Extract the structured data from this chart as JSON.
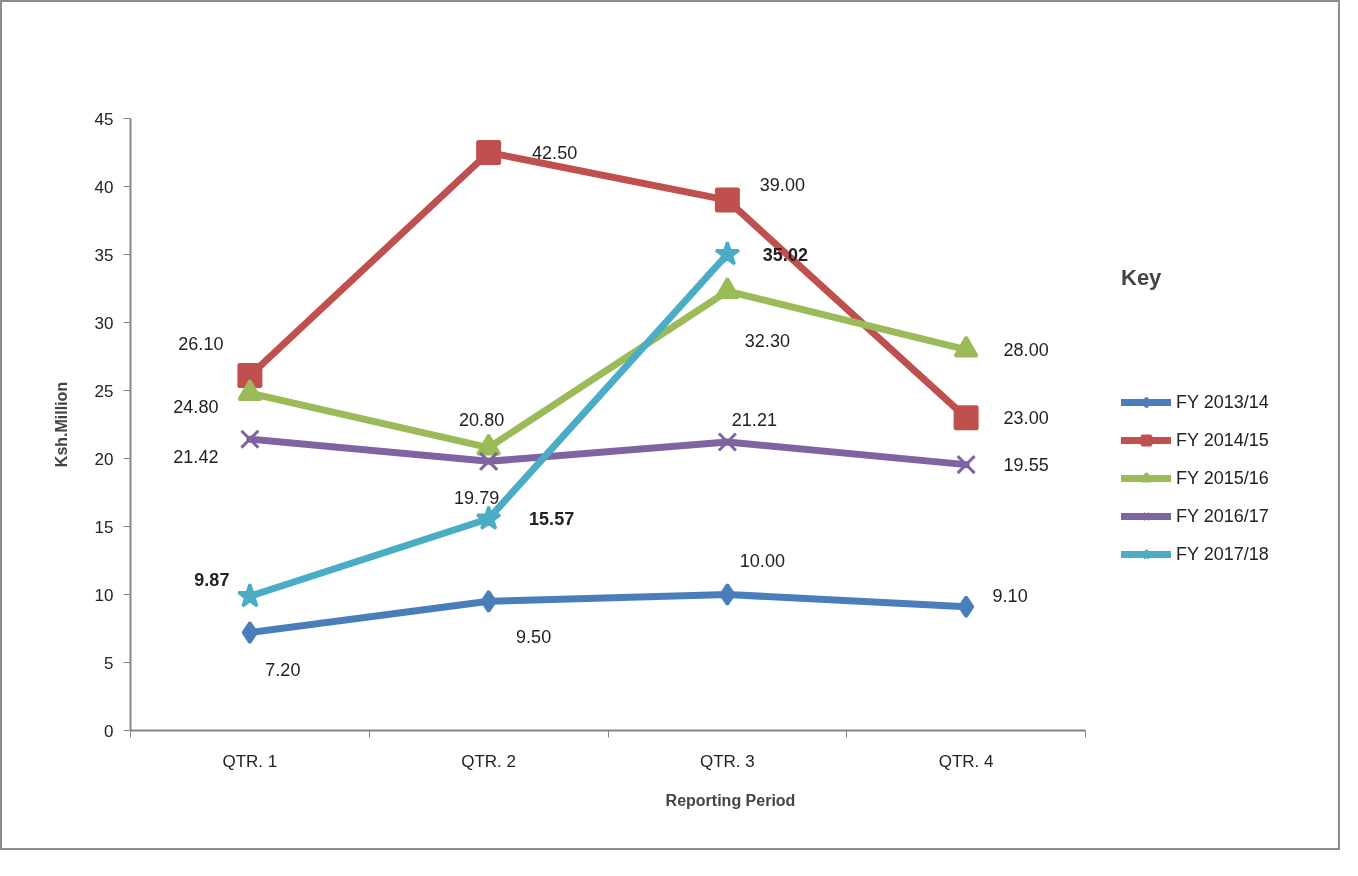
{
  "chart_data": {
    "type": "line",
    "xlabel": "Reporting Period",
    "ylabel": "Ksh.Million",
    "legend_title": "Key",
    "legend": "right",
    "grid": false,
    "categories": [
      "QTR. 1",
      "QTR. 2",
      "QTR. 3",
      "QTR. 4"
    ],
    "ylim": [
      0,
      45
    ],
    "yticks": [
      0,
      5,
      10,
      15,
      20,
      25,
      30,
      35,
      40,
      45
    ],
    "series": [
      {
        "name": "FY 2013/14",
        "color": "#4a7ebb",
        "marker": "diamond",
        "values": [
          7.2,
          9.5,
          10.0,
          9.1
        ],
        "value_labels": [
          "7.20",
          "9.50",
          "10.00",
          "9.10"
        ]
      },
      {
        "name": "FY 2014/15",
        "color": "#c0504d",
        "marker": "square",
        "values": [
          26.1,
          42.5,
          39.0,
          23.0
        ],
        "value_labels": [
          "26.10",
          "42.50",
          "39.00",
          "23.00"
        ]
      },
      {
        "name": "FY 2015/16",
        "color": "#9bbb59",
        "marker": "triangle",
        "values": [
          24.8,
          20.8,
          32.3,
          28.0
        ],
        "value_labels": [
          "24.80",
          "20.80",
          "32.30",
          "28.00"
        ]
      },
      {
        "name": "FY 2016/17",
        "color": "#8064a2",
        "marker": "cross",
        "values": [
          21.42,
          19.79,
          21.21,
          19.55
        ],
        "value_labels": [
          "21.42",
          "19.79",
          "21.21",
          "19.55"
        ]
      },
      {
        "name": "FY 2017/18",
        "color": "#4bacc6",
        "marker": "star",
        "values": [
          9.87,
          15.57,
          35.02,
          null
        ],
        "value_labels": [
          "9.87",
          "15.57",
          "35.02",
          null
        ]
      }
    ]
  }
}
